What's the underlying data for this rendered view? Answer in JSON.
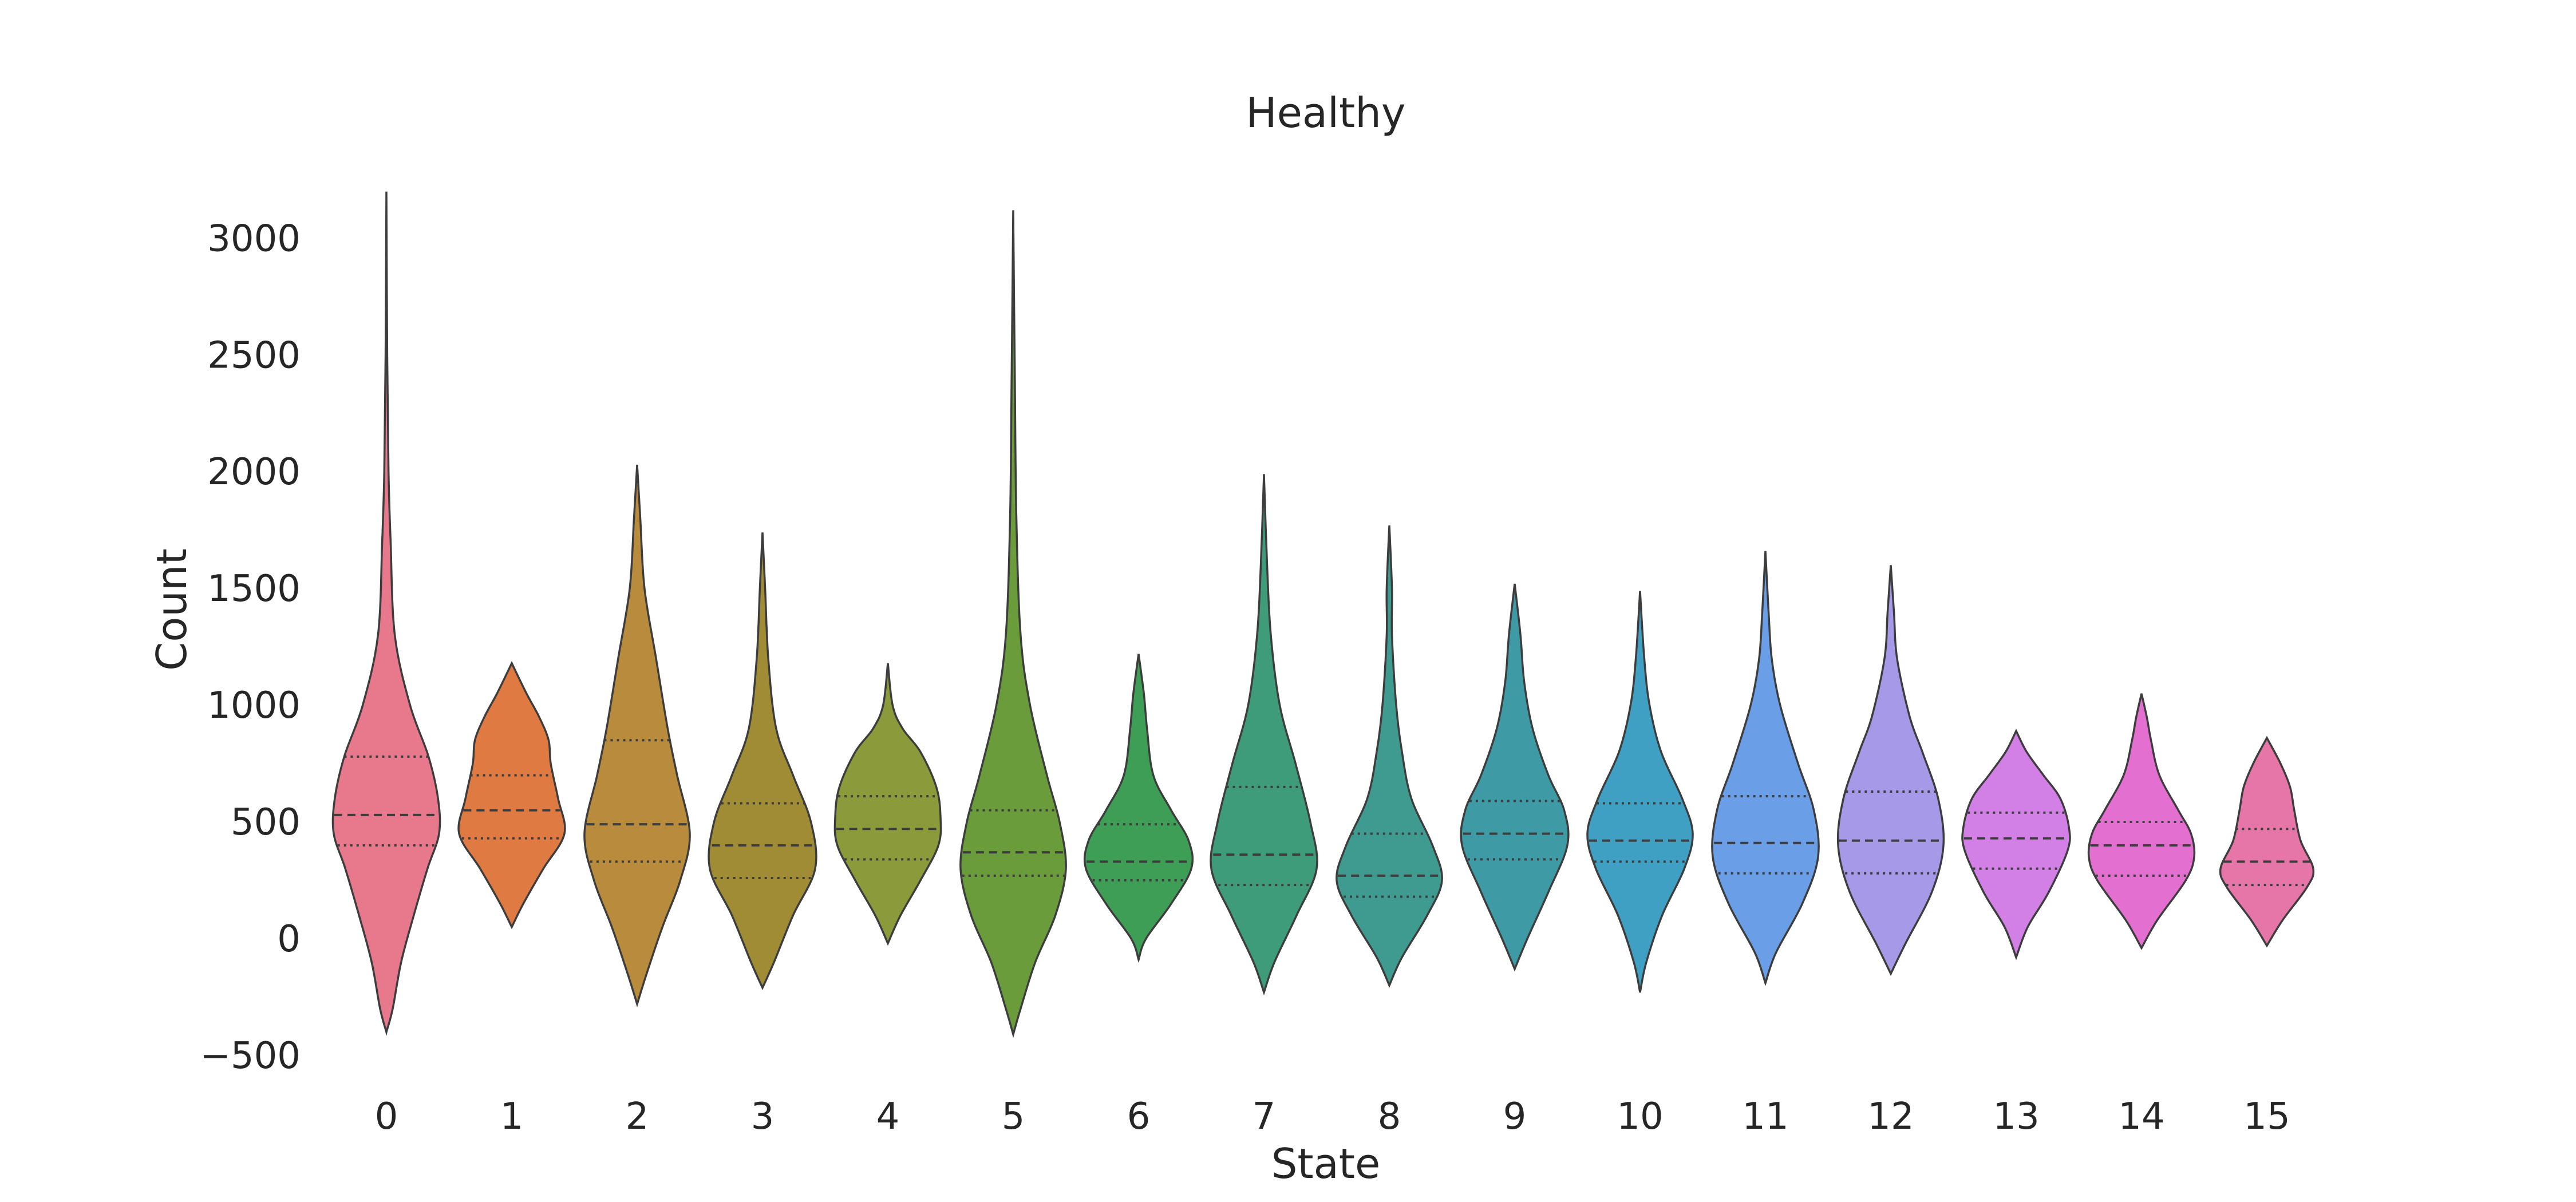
{
  "chart_data": {
    "type": "violin",
    "title": "Healthy",
    "xlabel": "State",
    "ylabel": "Count",
    "ylim": [
      -500,
      3200
    ],
    "yticks": [
      -500,
      0,
      500,
      1000,
      1500,
      2000,
      2500,
      3000
    ],
    "ytick_labels": [
      "−500",
      "0",
      "500",
      "1000",
      "1500",
      "2000",
      "2500",
      "3000"
    ],
    "grid": false,
    "categories": [
      "0",
      "1",
      "2",
      "3",
      "4",
      "5",
      "6",
      "7",
      "8",
      "9",
      "10",
      "11",
      "12",
      "13",
      "14",
      "15"
    ],
    "colors": [
      "#e8788b",
      "#e07a43",
      "#b98b3c",
      "#a08c34",
      "#8b9a3b",
      "#6b9c3b",
      "#3e9e56",
      "#3f9c7a",
      "#3f9a8f",
      "#3e9aa5",
      "#40a0c3",
      "#6a9ee6",
      "#a699e8",
      "#d27fe6",
      "#e36fd0",
      "#e776a8"
    ],
    "violins": [
      {
        "state": "0",
        "min": -400,
        "max": 3200,
        "q1": 400,
        "median": 530,
        "q3": 780,
        "profile": [
          [
            -400,
            0
          ],
          [
            -300,
            12
          ],
          [
            -100,
            28
          ],
          [
            100,
            52
          ],
          [
            300,
            78
          ],
          [
            450,
            100
          ],
          [
            600,
            98
          ],
          [
            780,
            80
          ],
          [
            1000,
            45
          ],
          [
            1300,
            16
          ],
          [
            1700,
            8
          ],
          [
            2000,
            4
          ],
          [
            2500,
            1.5
          ],
          [
            3200,
            0
          ]
        ]
      },
      {
        "state": "1",
        "min": 50,
        "max": 1180,
        "q1": 430,
        "median": 550,
        "q3": 700,
        "profile": [
          [
            50,
            0
          ],
          [
            150,
            22
          ],
          [
            300,
            60
          ],
          [
            450,
            100
          ],
          [
            600,
            88
          ],
          [
            750,
            74
          ],
          [
            850,
            70
          ],
          [
            950,
            52
          ],
          [
            1050,
            28
          ],
          [
            1180,
            0
          ]
        ]
      },
      {
        "state": "2",
        "min": -280,
        "max": 2030,
        "q1": 330,
        "median": 490,
        "q3": 850,
        "profile": [
          [
            -280,
            0
          ],
          [
            -150,
            18
          ],
          [
            50,
            48
          ],
          [
            250,
            82
          ],
          [
            450,
            100
          ],
          [
            700,
            76
          ],
          [
            900,
            58
          ],
          [
            1200,
            36
          ],
          [
            1500,
            14
          ],
          [
            1800,
            6
          ],
          [
            2030,
            0
          ]
        ]
      },
      {
        "state": "3",
        "min": -210,
        "max": 1740,
        "q1": 260,
        "median": 400,
        "q3": 580,
        "profile": [
          [
            -210,
            0
          ],
          [
            -100,
            22
          ],
          [
            100,
            58
          ],
          [
            300,
            100
          ],
          [
            500,
            92
          ],
          [
            700,
            58
          ],
          [
            900,
            26
          ],
          [
            1200,
            11
          ],
          [
            1500,
            5
          ],
          [
            1740,
            0
          ]
        ]
      },
      {
        "state": "4",
        "min": -20,
        "max": 1180,
        "q1": 340,
        "median": 470,
        "q3": 610,
        "profile": [
          [
            -20,
            0
          ],
          [
            100,
            24
          ],
          [
            250,
            62
          ],
          [
            400,
            96
          ],
          [
            520,
            100
          ],
          [
            650,
            92
          ],
          [
            800,
            62
          ],
          [
            900,
            28
          ],
          [
            1000,
            9
          ],
          [
            1180,
            0
          ]
        ]
      },
      {
        "state": "5",
        "min": -410,
        "max": 3120,
        "q1": 270,
        "median": 370,
        "q3": 550,
        "profile": [
          [
            -410,
            0
          ],
          [
            -300,
            14
          ],
          [
            -100,
            42
          ],
          [
            100,
            80
          ],
          [
            300,
            100
          ],
          [
            500,
            88
          ],
          [
            700,
            64
          ],
          [
            1000,
            32
          ],
          [
            1300,
            14
          ],
          [
            1800,
            6
          ],
          [
            2400,
            3
          ],
          [
            3120,
            0
          ]
        ]
      },
      {
        "state": "6",
        "min": -90,
        "max": 1220,
        "q1": 250,
        "median": 330,
        "q3": 490,
        "profile": [
          [
            -90,
            0
          ],
          [
            0,
            14
          ],
          [
            150,
            62
          ],
          [
            300,
            100
          ],
          [
            420,
            95
          ],
          [
            550,
            62
          ],
          [
            700,
            28
          ],
          [
            900,
            16
          ],
          [
            1050,
            10
          ],
          [
            1220,
            0
          ]
        ]
      },
      {
        "state": "7",
        "min": -230,
        "max": 1990,
        "q1": 230,
        "median": 360,
        "q3": 650,
        "profile": [
          [
            -230,
            0
          ],
          [
            -100,
            20
          ],
          [
            100,
            62
          ],
          [
            300,
            100
          ],
          [
            500,
            88
          ],
          [
            750,
            60
          ],
          [
            1000,
            30
          ],
          [
            1300,
            13
          ],
          [
            1600,
            6
          ],
          [
            1990,
            0
          ]
        ]
      },
      {
        "state": "8",
        "min": -200,
        "max": 1770,
        "q1": 180,
        "median": 270,
        "q3": 450,
        "profile": [
          [
            -200,
            0
          ],
          [
            -80,
            24
          ],
          [
            100,
            72
          ],
          [
            250,
            100
          ],
          [
            400,
            82
          ],
          [
            600,
            42
          ],
          [
            800,
            24
          ],
          [
            1000,
            13
          ],
          [
            1300,
            5
          ],
          [
            1500,
            5
          ],
          [
            1770,
            0
          ]
        ]
      },
      {
        "state": "9",
        "min": -130,
        "max": 1520,
        "q1": 340,
        "median": 450,
        "q3": 590,
        "profile": [
          [
            -130,
            0
          ],
          [
            0,
            24
          ],
          [
            200,
            64
          ],
          [
            400,
            100
          ],
          [
            550,
            94
          ],
          [
            700,
            64
          ],
          [
            900,
            34
          ],
          [
            1100,
            18
          ],
          [
            1300,
            11
          ],
          [
            1520,
            0
          ]
        ]
      },
      {
        "state": "10",
        "min": -230,
        "max": 1490,
        "q1": 330,
        "median": 420,
        "q3": 580,
        "profile": [
          [
            -230,
            0
          ],
          [
            -100,
            12
          ],
          [
            100,
            42
          ],
          [
            300,
            84
          ],
          [
            450,
            100
          ],
          [
            600,
            80
          ],
          [
            800,
            40
          ],
          [
            1000,
            18
          ],
          [
            1200,
            8
          ],
          [
            1490,
            0
          ]
        ]
      },
      {
        "state": "11",
        "min": -190,
        "max": 1660,
        "q1": 280,
        "median": 410,
        "q3": 610,
        "profile": [
          [
            -190,
            0
          ],
          [
            -60,
            20
          ],
          [
            150,
            70
          ],
          [
            350,
            100
          ],
          [
            550,
            92
          ],
          [
            750,
            62
          ],
          [
            1000,
            28
          ],
          [
            1200,
            12
          ],
          [
            1400,
            6
          ],
          [
            1660,
            0
          ]
        ]
      },
      {
        "state": "12",
        "min": -150,
        "max": 1600,
        "q1": 280,
        "median": 420,
        "q3": 630,
        "profile": [
          [
            -150,
            0
          ],
          [
            -20,
            28
          ],
          [
            200,
            78
          ],
          [
            400,
            100
          ],
          [
            600,
            90
          ],
          [
            800,
            60
          ],
          [
            950,
            36
          ],
          [
            1200,
            12
          ],
          [
            1400,
            6
          ],
          [
            1600,
            0
          ]
        ]
      },
      {
        "state": "13",
        "min": -80,
        "max": 890,
        "q1": 300,
        "median": 430,
        "q3": 540,
        "profile": [
          [
            -80,
            0
          ],
          [
            50,
            22
          ],
          [
            200,
            62
          ],
          [
            380,
            98
          ],
          [
            480,
            100
          ],
          [
            600,
            84
          ],
          [
            700,
            52
          ],
          [
            800,
            20
          ],
          [
            890,
            0
          ]
        ]
      },
      {
        "state": "14",
        "min": -40,
        "max": 1050,
        "q1": 270,
        "median": 400,
        "q3": 500,
        "profile": [
          [
            -40,
            0
          ],
          [
            80,
            30
          ],
          [
            250,
            84
          ],
          [
            350,
            100
          ],
          [
            450,
            94
          ],
          [
            550,
            70
          ],
          [
            700,
            34
          ],
          [
            850,
            18
          ],
          [
            950,
            10
          ],
          [
            1050,
            0
          ]
        ]
      },
      {
        "state": "15",
        "min": -30,
        "max": 860,
        "q1": 230,
        "median": 330,
        "q3": 470,
        "profile": [
          [
            -30,
            0
          ],
          [
            80,
            30
          ],
          [
            220,
            76
          ],
          [
            300,
            88
          ],
          [
            420,
            64
          ],
          [
            550,
            52
          ],
          [
            650,
            44
          ],
          [
            750,
            26
          ],
          [
            860,
            0
          ]
        ]
      }
    ]
  }
}
